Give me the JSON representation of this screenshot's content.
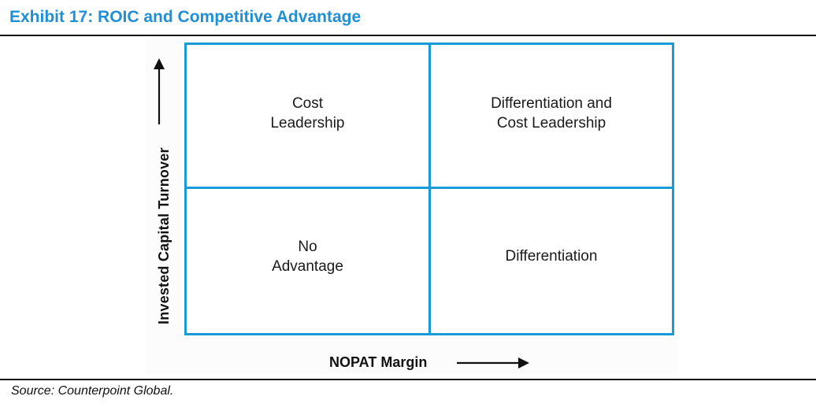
{
  "title": "Exhibit 17: ROIC and Competitive Advantage",
  "colors": {
    "title": "#1f8fd6",
    "grid_border": "#1a9ad6",
    "text": "#1a1a1a"
  },
  "axes": {
    "y_label": "Invested Capital Turnover",
    "x_label": "NOPAT Margin"
  },
  "quadrants": {
    "top_left": "Cost\nLeadership",
    "top_right": "Differentiation and\nCost Leadership",
    "bottom_left": "No\nAdvantage",
    "bottom_right": "Differentiation"
  },
  "source": "Source: Counterpoint Global."
}
